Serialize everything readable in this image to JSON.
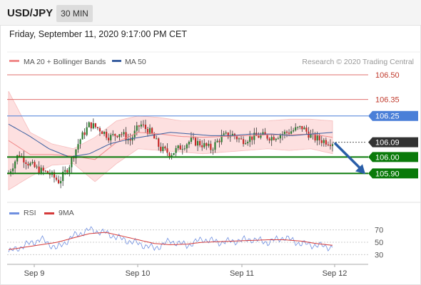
{
  "header": {
    "symbol": "USD/JPY",
    "timeframe": "30 MIN"
  },
  "datetime": "Friday, September 11, 2020 9:17:00 PM CET",
  "legend": {
    "ma20_label": "MA 20 + Bollinger Bands",
    "ma50_label": "MA 50",
    "rsi_label": "RSI",
    "ma9_label": "9MA"
  },
  "credit": "Research © 2020 Trading Central",
  "colors": {
    "bull_candle": "#2e7d32",
    "bear_candle": "#c62828",
    "bollinger_fill": "#fde0e0",
    "ma20": "#f08a8a",
    "ma50": "#3a5fa0",
    "support": "#0a7a0a",
    "resistance": "#e0706e",
    "pivot": "#4a7fd8",
    "last_price": "#333333",
    "arrow": "#2a5ea8",
    "rsi": "#6f8fe0",
    "rsi_ma": "#d53a3a"
  },
  "chart_data": [
    {
      "type": "candlestick",
      "title": "",
      "x_ticks": [
        "Sep 9",
        "Sep 10",
        "Sep 11",
        "Sep 12"
      ],
      "levels": [
        {
          "value": 106.5,
          "label": "106.50",
          "kind": "resistance"
        },
        {
          "value": 106.35,
          "label": "106.35",
          "kind": "resistance"
        },
        {
          "value": 106.25,
          "label": "106.25",
          "kind": "pivot"
        },
        {
          "value": 106.09,
          "label": "106.09",
          "kind": "last"
        },
        {
          "value": 106.0,
          "label": "106.00",
          "kind": "support"
        },
        {
          "value": 105.9,
          "label": "105.90",
          "kind": "support"
        }
      ],
      "ylim": [
        105.75,
        106.6
      ],
      "price_path": [
        105.9,
        106.02,
        105.96,
        105.92,
        105.9,
        105.85,
        105.95,
        106.1,
        106.2,
        106.17,
        106.12,
        106.15,
        106.1,
        106.2,
        106.15,
        106.05,
        106.02,
        106.06,
        106.1,
        106.08,
        106.05,
        106.12,
        106.14,
        106.1,
        106.12,
        106.13,
        106.12,
        106.14,
        106.16,
        106.18,
        106.12,
        106.1,
        106.09
      ],
      "ma50_path": [
        106.2,
        106.13,
        106.05,
        106.0,
        106.02,
        106.08,
        106.11,
        106.13,
        106.15,
        106.14,
        106.13,
        106.13,
        106.14,
        106.14,
        106.13,
        106.14,
        106.15
      ],
      "bb_upper_path": [
        106.4,
        106.15,
        106.08,
        106.05,
        106.12,
        106.22,
        106.25,
        106.24,
        106.22,
        106.22,
        106.22,
        106.22,
        106.22,
        106.23,
        106.23,
        106.22
      ],
      "bb_lower_path": [
        105.8,
        105.88,
        105.95,
        105.96,
        105.85,
        105.96,
        106.05,
        106.04,
        106.03,
        106.02,
        106.03,
        106.04,
        106.05,
        106.04,
        106.05,
        106.02
      ],
      "arrow": {
        "from": 106.09,
        "to": 105.9
      }
    },
    {
      "type": "line",
      "title": "",
      "y_ticks": [
        70,
        50,
        30
      ],
      "ylim": [
        20,
        80
      ],
      "series": [
        {
          "name": "RSI",
          "values": [
            34,
            45,
            55,
            40,
            60,
            70,
            65,
            55,
            48,
            40,
            52,
            45,
            55,
            50,
            52,
            55,
            50,
            58,
            48,
            45,
            42
          ]
        },
        {
          "name": "9MA",
          "values": [
            38,
            42,
            46,
            50,
            57,
            64,
            66,
            60,
            54,
            48,
            46,
            47,
            50,
            51,
            52,
            53,
            54,
            54,
            52,
            48,
            45
          ]
        }
      ]
    }
  ]
}
